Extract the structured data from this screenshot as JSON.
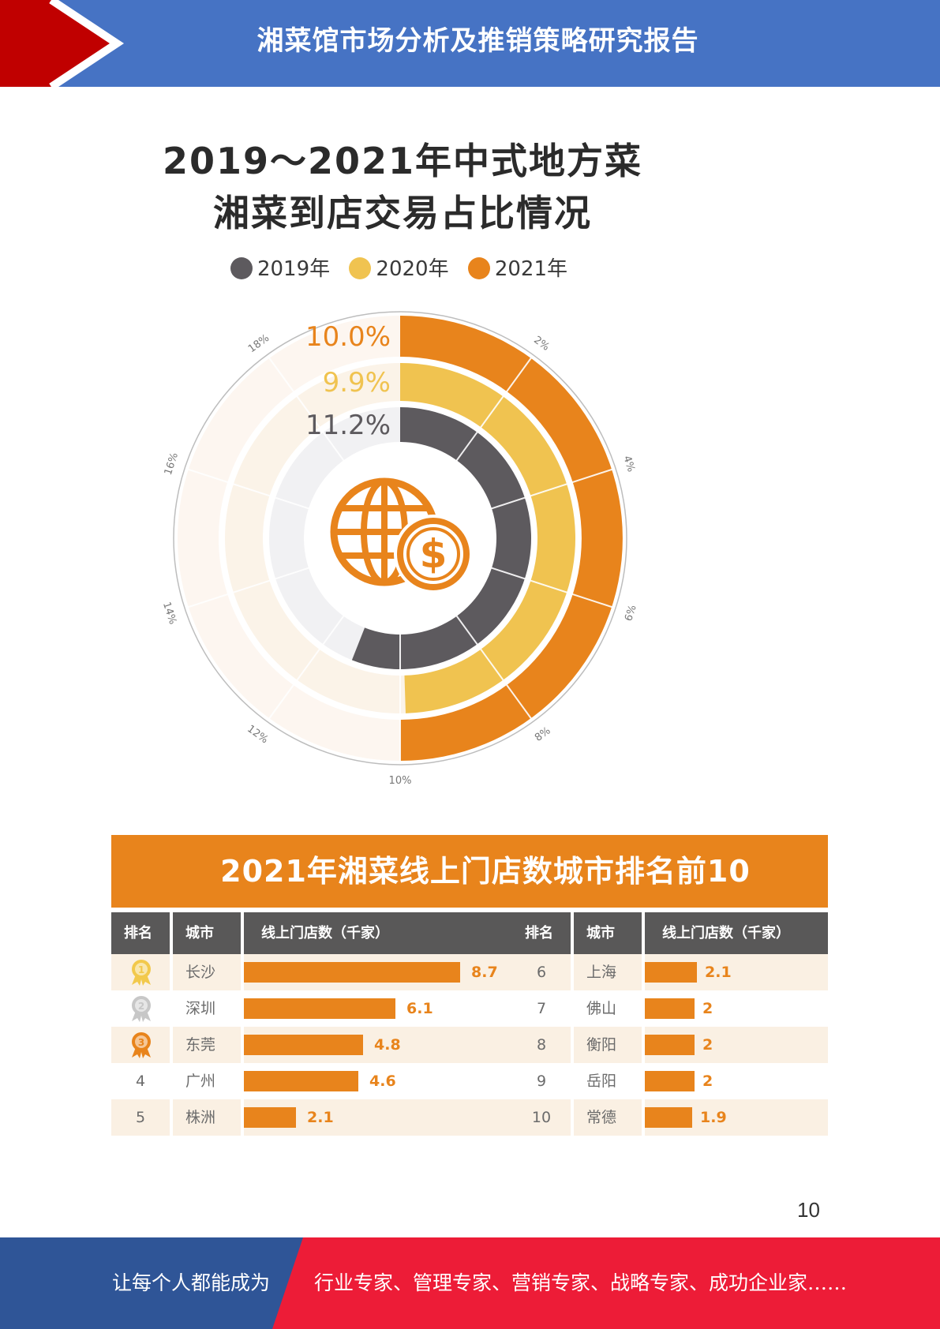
{
  "header": {
    "title": "湘菜馆市场分析及推销策略研究报告"
  },
  "colors": {
    "header_blue": "#4673c4",
    "header_red": "#c00000",
    "orange": "#e8841c",
    "yellow": "#f0c350",
    "gray": "#5d5a5e",
    "footer_blue": "#2f5597",
    "footer_red": "#ed1c37"
  },
  "chart_data": [
    {
      "type": "radial-bar",
      "title_line1": "2019～2021年中式地方菜",
      "title_line2": "湘菜到店交易占比情况",
      "series": [
        {
          "name": "2019年",
          "value": 11.2,
          "label": "11.2%",
          "color": "#5d5a5e"
        },
        {
          "name": "2020年",
          "value": 9.9,
          "label": "9.9%",
          "color": "#f0c350"
        },
        {
          "name": "2021年",
          "value": 10.0,
          "label": "10.0%",
          "color": "#e8841c"
        }
      ],
      "axis_ticks": [
        "2%",
        "4%",
        "6%",
        "8%",
        "10%",
        "12%",
        "14%",
        "16%",
        "18%"
      ],
      "axis_max": 20,
      "center_icon": "globe-dollar-icon"
    },
    {
      "type": "table",
      "title": "2021年湘菜线上门店数城市排名前10",
      "headers": [
        "排名",
        "城市",
        "线上门店数（千家）"
      ],
      "rows_left": [
        {
          "rank": "1",
          "medal": "gold",
          "city": "长沙",
          "value": 8.7,
          "value_label": "8.7"
        },
        {
          "rank": "2",
          "medal": "silver",
          "city": "深圳",
          "value": 6.1,
          "value_label": "6.1"
        },
        {
          "rank": "3",
          "medal": "bronze",
          "city": "东莞",
          "value": 4.8,
          "value_label": "4.8"
        },
        {
          "rank": "4",
          "medal": "",
          "city": "广州",
          "value": 4.6,
          "value_label": "4.6"
        },
        {
          "rank": "5",
          "medal": "",
          "city": "株洲",
          "value": 2.1,
          "value_label": "2.1"
        }
      ],
      "rows_right": [
        {
          "rank": "6",
          "city": "上海",
          "value": 2.1,
          "value_label": "2.1"
        },
        {
          "rank": "7",
          "city": "佛山",
          "value": 2,
          "value_label": "2"
        },
        {
          "rank": "8",
          "city": "衡阳",
          "value": 2,
          "value_label": "2"
        },
        {
          "rank": "9",
          "city": "岳阳",
          "value": 2,
          "value_label": "2"
        },
        {
          "rank": "10",
          "city": "常德",
          "value": 1.9,
          "value_label": "1.9"
        }
      ]
    }
  ],
  "page_number": "10",
  "footer": {
    "left_text": "让每个人都能成为",
    "right_text": "行业专家、管理专家、营销专家、战略专家、成功企业家……"
  }
}
